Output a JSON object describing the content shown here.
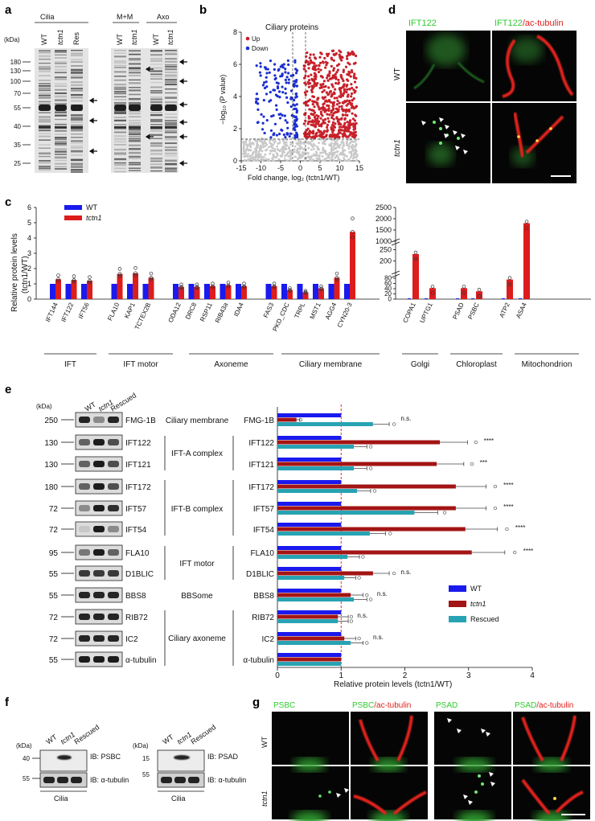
{
  "panels": {
    "a": {
      "label": "a",
      "unit": "(kDa)",
      "group1": "Cilia",
      "group2": "M+M",
      "group3": "Axo",
      "lanes": [
        "WT",
        "tctn1",
        "Res",
        "WT",
        "tctn1",
        "WT",
        "tctn1"
      ],
      "markers": [
        "180",
        "130",
        "100",
        "70",
        "55",
        "40",
        "35",
        "25"
      ]
    },
    "b": {
      "label": "b",
      "title": "Ciliary proteins",
      "legend_up": "Up",
      "legend_down": "Down",
      "ylabel": "−log₁₀ (P value)",
      "xlabel": "Fold change, log₂ (tctn1/WT)"
    },
    "d": {
      "label": "d",
      "head1": "IFT122",
      "head2a": "IFT122",
      "head2b": "/ac-tubulin",
      "row1": "WT",
      "row2": "tctn1"
    },
    "c": {
      "label": "c",
      "legend_wt": "WT",
      "legend_mut": "tctn1",
      "ylabel1": "Relative protein levels",
      "ylabel2": "(tctn1/WT)",
      "groups": [
        "IFT",
        "IFT motor",
        "Axoneme",
        "Ciliary membrane",
        "Golgi",
        "Chloroplast",
        "Mitochondrion"
      ]
    },
    "e": {
      "label": "e",
      "unit": "(kDa)",
      "lanes": [
        "WT",
        "tctn1",
        "Rescued"
      ],
      "xlabel": "Relative protein levels (tctn1/WT)",
      "legend": [
        "WT",
        "tctn1",
        "Rescued"
      ],
      "rows": [
        {
          "mw": "250",
          "name": "FMG-1B",
          "cat": "Ciliary membrane",
          "sig": "n.s."
        },
        {
          "mw": "130",
          "name": "IFT122",
          "cat": "IFT-A complex",
          "sig": "****"
        },
        {
          "mw": "130",
          "name": "IFT121",
          "cat": "",
          "sig": "***"
        },
        {
          "mw": "180",
          "name": "IFT172",
          "cat": "",
          "sig": "****"
        },
        {
          "mw": "72",
          "name": "IFT57",
          "cat": "IFT-B complex",
          "sig": "****"
        },
        {
          "mw": "72",
          "name": "IFT54",
          "cat": "",
          "sig": "****"
        },
        {
          "mw": "95",
          "name": "FLA10",
          "cat": "IFT motor",
          "sig": "****"
        },
        {
          "mw": "55",
          "name": "D1BLIC",
          "cat": "",
          "sig": "n.s."
        },
        {
          "mw": "55",
          "name": "BBS8",
          "cat": "BBSome",
          "sig": "n.s."
        },
        {
          "mw": "72",
          "name": "RIB72",
          "cat": "",
          "sig": "n.s."
        },
        {
          "mw": "72",
          "name": "IC2",
          "cat": "Ciliary axoneme",
          "sig": "n.s."
        },
        {
          "mw": "55",
          "name": "α-tubulin",
          "cat": "",
          "sig": ""
        }
      ]
    },
    "f": {
      "label": "f",
      "unit": "(kDa)",
      "lanes": [
        "WT",
        "tctn1",
        "Rescued"
      ],
      "ib1": "IB: PSBC",
      "ib2": "IB: α-tubulin",
      "ib3": "IB: PSAD",
      "ib4": "IB: α-tubulin",
      "mw1": "40",
      "mw2": "55",
      "mw3": "15",
      "mw4": "55",
      "cilia": "Cilia"
    },
    "g": {
      "label": "g",
      "h1": "PSBC",
      "h2a": "PSBC",
      "h2b": "/ac-tubulin",
      "h3": "PSAD",
      "h4a": "PSAD",
      "h4b": "/ac-tubulin",
      "row1": "WT",
      "row2": "tctn1"
    }
  },
  "colors": {
    "wt": "#1a1aee",
    "mut": "#dd1c1c",
    "res": "#27a3b3",
    "up": "#c8202a",
    "down": "#1a2fd0",
    "green": "#2ecc2e",
    "red": "#e0201c"
  },
  "chart_data": [
    {
      "type": "scatter",
      "title": "Ciliary proteins",
      "xlabel": "Fold change, log2 (tctn1/WT)",
      "ylabel": "-log10 (P value)",
      "xlim": [
        -15,
        15
      ],
      "ylim": [
        0,
        8
      ],
      "series": [
        {
          "name": "Up"
        },
        {
          "name": "Down"
        }
      ]
    },
    {
      "type": "bar",
      "ylabel": "Relative protein levels (tctn1/WT)",
      "ylim": [
        0,
        6
      ],
      "categories": [
        "IFT144",
        "IFT122",
        "IFT56",
        "FLA10",
        "KAP1",
        "TCTEX2B",
        "ODA12",
        "DRC8",
        "RSP11",
        "RIB43a",
        "IDA4",
        "FAS3",
        "PKD_CDC",
        "TRPL",
        "MST1",
        "AGG4",
        "CYN20-3"
      ],
      "series": [
        {
          "name": "WT",
          "values": [
            1,
            1,
            1,
            1,
            1,
            1,
            1,
            1,
            1,
            1,
            1,
            1,
            1,
            1,
            1,
            1,
            1
          ]
        },
        {
          "name": "tctn1",
          "values": [
            1.3,
            1.25,
            1.2,
            1.65,
            1.7,
            1.4,
            0.8,
            0.8,
            0.85,
            0.9,
            0.85,
            0.85,
            0.6,
            0.45,
            0.7,
            1.4,
            4.4
          ]
        }
      ]
    },
    {
      "type": "bar",
      "ylim": [
        0,
        2500
      ],
      "categories": [
        "COPA1",
        "UPTG1",
        "PSAD",
        "PSBC",
        "ATP2",
        "ASA4"
      ],
      "series": [
        {
          "name": "WT",
          "values": [
            1,
            1,
            1,
            1,
            1,
            1
          ]
        },
        {
          "name": "tctn1",
          "values": [
            230,
            42,
            42,
            30,
            75,
            1800
          ]
        }
      ]
    },
    {
      "type": "bar",
      "xlabel": "Relative protein levels (tctn1/WT)",
      "xlim": [
        0,
        4
      ],
      "categories": [
        "FMG-1B",
        "IFT122",
        "IFT121",
        "IFT172",
        "IFT57",
        "IFT54",
        "FLA10",
        "D1BLIC",
        "BBS8",
        "RIB72",
        "IC2",
        "α-tubulin"
      ],
      "series": [
        {
          "name": "WT",
          "values": [
            1,
            1,
            1,
            1,
            1,
            1,
            1,
            1,
            1,
            1,
            1,
            1
          ]
        },
        {
          "name": "tctn1",
          "values": [
            0.3,
            2.55,
            2.5,
            2.8,
            2.8,
            2.95,
            3.05,
            1.5,
            1.15,
            0.95,
            1.05,
            1
          ]
        },
        {
          "name": "Rescued",
          "values": [
            1.5,
            1.2,
            1.2,
            1.25,
            2.15,
            1.45,
            1.1,
            1.05,
            1.2,
            0.95,
            1.15,
            1
          ]
        }
      ]
    }
  ]
}
